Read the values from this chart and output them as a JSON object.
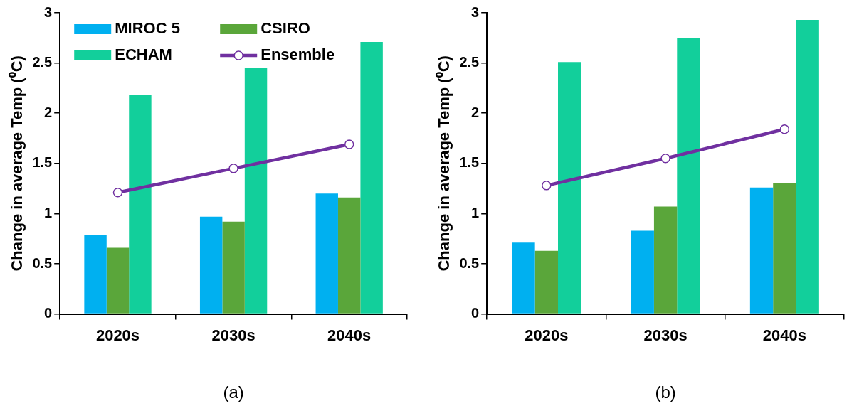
{
  "chart_data": [
    {
      "type": "bar",
      "categories": [
        "2020s",
        "2030s",
        "2040s"
      ],
      "ylabel": "Change in average Temp (⁰C)",
      "ylim": [
        0,
        3
      ],
      "yticks": [
        0,
        0.5,
        1,
        1.5,
        2,
        2.5,
        3
      ],
      "grid": false,
      "legend": "top left",
      "annotations": [
        "(a)"
      ],
      "series": [
        {
          "name": "MIROC 5",
          "color": "#00b0f0",
          "values": [
            0.79,
            0.97,
            1.2
          ]
        },
        {
          "name": "CSIRO",
          "color": "#5aa63a",
          "values": [
            0.66,
            0.92,
            1.16
          ]
        },
        {
          "name": "ECHAM",
          "color": "#12cf9b",
          "values": [
            2.18,
            2.45,
            2.71
          ]
        },
        {
          "name": "Ensemble",
          "type": "line",
          "color": "#7030a0",
          "marker": "circle",
          "line_style": "solid",
          "values": [
            1.21,
            1.45,
            1.69
          ]
        }
      ]
    },
    {
      "type": "bar",
      "categories": [
        "2020s",
        "2030s",
        "2040s"
      ],
      "ylabel": "Change in average Temp (⁰C)",
      "ylim": [
        0,
        3
      ],
      "yticks": [
        0,
        0.5,
        1,
        1.5,
        2,
        2.5,
        3
      ],
      "grid": false,
      "legend": false,
      "annotations": [
        "(b)"
      ],
      "series": [
        {
          "color": "#00b0f0",
          "values": [
            0.71,
            0.83,
            1.26
          ]
        },
        {
          "color": "#5aa63a",
          "values": [
            0.63,
            1.07,
            1.3
          ]
        },
        {
          "color": "#12cf9b",
          "values": [
            2.51,
            2.75,
            2.93
          ]
        },
        {
          "type": "line",
          "color": "#7030a0",
          "marker": "circle",
          "line_style": "solid",
          "values": [
            1.28,
            1.55,
            1.84
          ]
        }
      ]
    }
  ]
}
